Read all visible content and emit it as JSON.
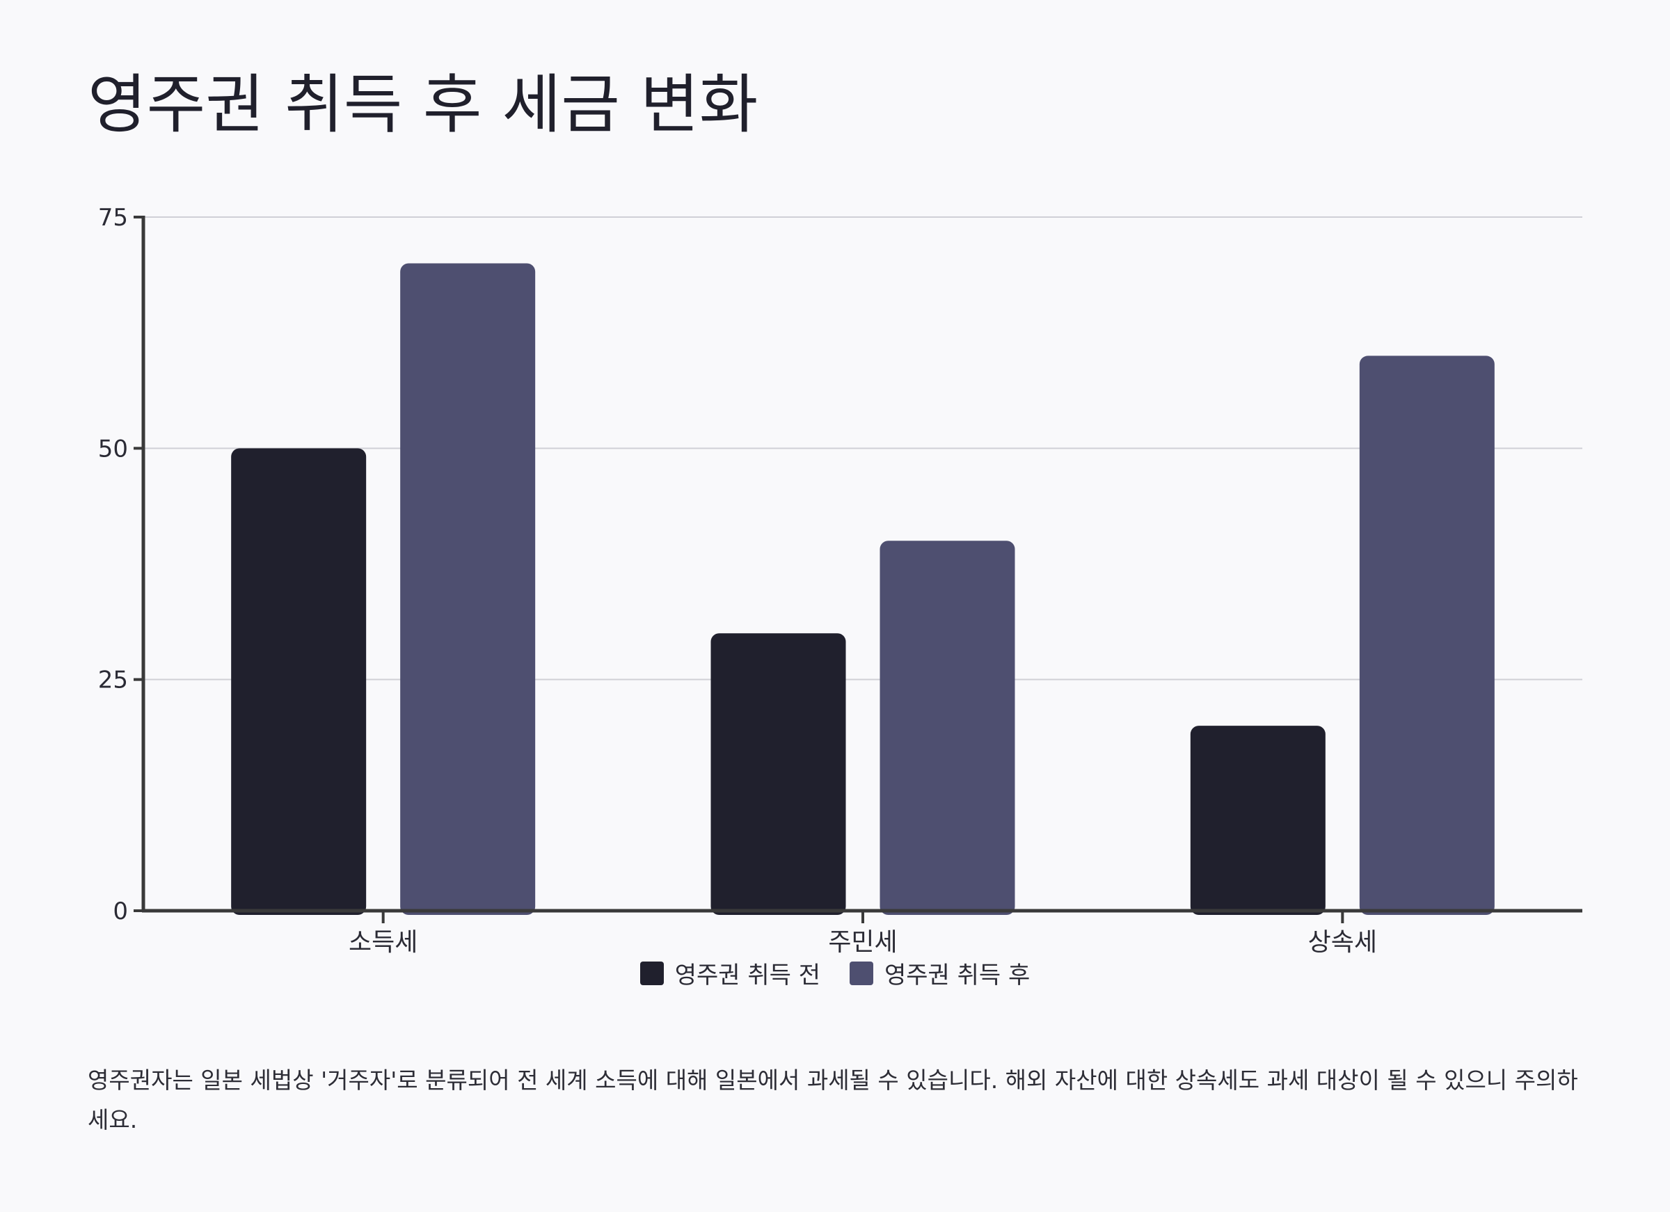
{
  "title": "영주권 취득 후 세금 변화",
  "note": "영주권자는 일본 세법상 '거주자'로 분류되어 전 세계 소득에 대해 일본에서 과세될 수 있습니다. 해외 자산에 대한 상속세도 과세 대상이 될 수 있으니 주의하세요.",
  "colors": {
    "background": "#f9f9fb",
    "series_before": "#20202d",
    "series_after": "#4e4f70",
    "axis": "#3a3a3a",
    "grid": "#d0d0d6"
  },
  "chart_data": {
    "type": "bar",
    "title": "영주권 취득 후 세금 변화",
    "categories": [
      "소득세",
      "주민세",
      "상속세"
    ],
    "series": [
      {
        "name": "영주권 취득 전",
        "values": [
          50,
          30,
          20
        ],
        "color": "#20202d"
      },
      {
        "name": "영주권 취득 후",
        "values": [
          70,
          40,
          60
        ],
        "color": "#4e4f70"
      }
    ],
    "xlabel": "",
    "ylabel": "",
    "ylim": [
      0,
      75
    ],
    "yticks": [
      0,
      25,
      50,
      75
    ],
    "grid": true,
    "legend_position": "bottom-center"
  }
}
